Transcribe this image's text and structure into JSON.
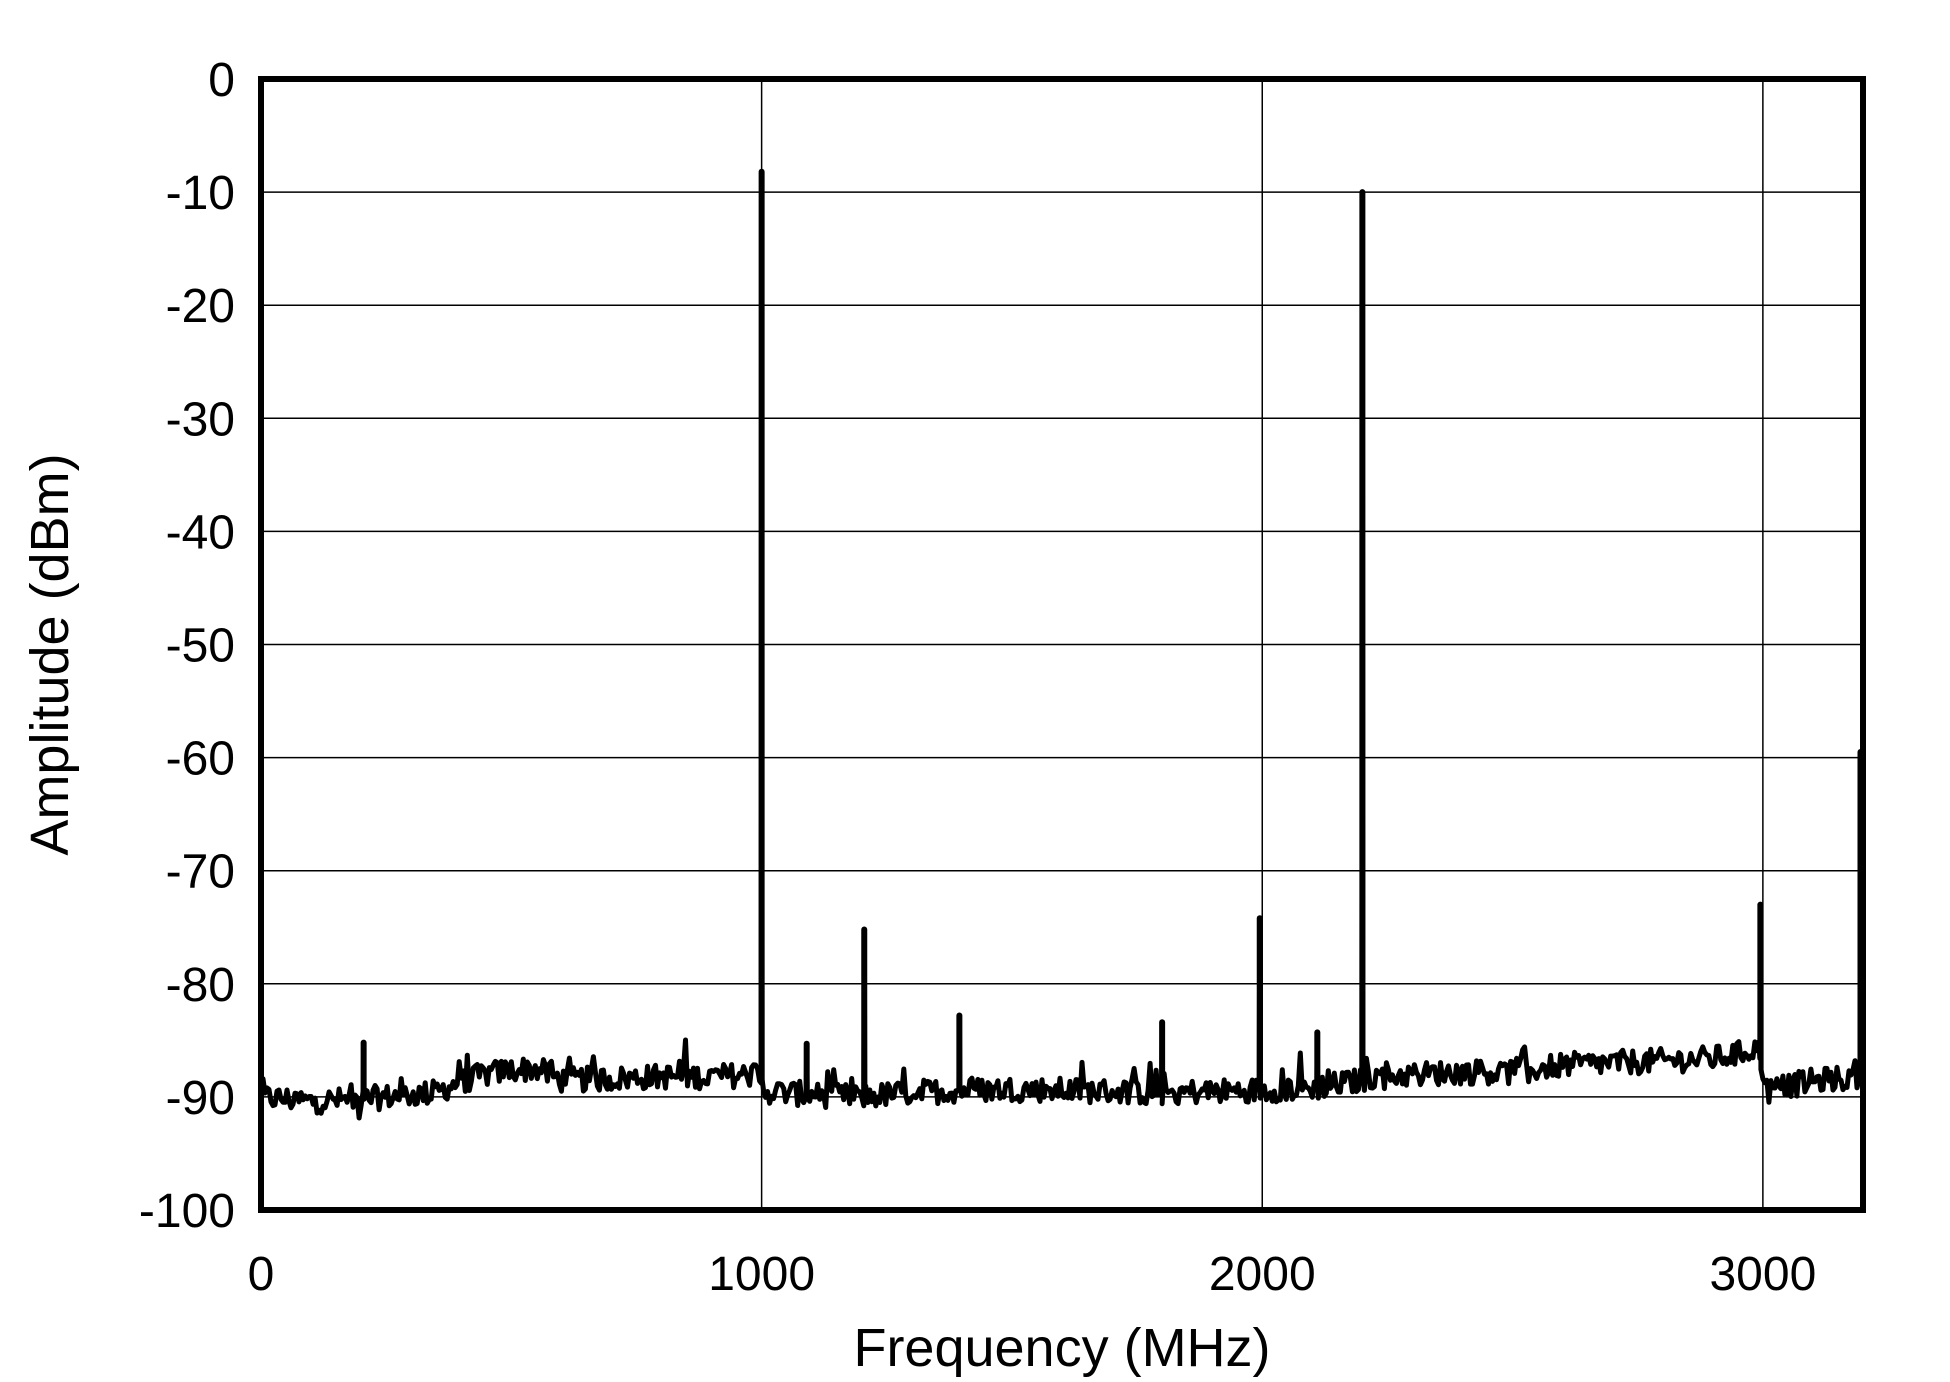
{
  "chart_data": {
    "type": "line",
    "title": "",
    "xlabel": "Frequency (MHz)",
    "ylabel": "Amplitude (dBm)",
    "xlim": [
      0,
      3200
    ],
    "ylim": [
      -100,
      0
    ],
    "xticks": [
      0,
      1000,
      2000,
      3000
    ],
    "xtick_labels": [
      "0",
      "1000",
      "2000",
      "3000"
    ],
    "yticks": [
      0,
      -10,
      -20,
      -30,
      -40,
      -50,
      -60,
      -70,
      -80,
      -90,
      -100
    ],
    "ytick_labels": [
      "0",
      "-10",
      "-20",
      "-30",
      "-40",
      "-50",
      "-60",
      "-70",
      "-80",
      "-90",
      "-100"
    ],
    "grid": true,
    "legend": "none",
    "colors": {
      "trace": "#000000",
      "grid": "#000000",
      "background": "#ffffff"
    },
    "noise_floor": {
      "x": [
        0,
        100,
        200,
        300,
        350,
        400,
        450,
        500,
        550,
        600,
        700,
        800,
        900,
        990,
        1010,
        1100,
        1200,
        1300,
        1400,
        1500,
        1600,
        1700,
        1800,
        1900,
        2000,
        2100,
        2190,
        2210,
        2300,
        2400,
        2500,
        2600,
        2700,
        2800,
        2900,
        2950,
        2990,
        3010,
        3050,
        3100,
        3150,
        3200
      ],
      "y": [
        -90,
        -90.4,
        -90.2,
        -89.8,
        -89.6,
        -88.6,
        -88,
        -87.6,
        -87.5,
        -88.5,
        -88.4,
        -88.2,
        -88.2,
        -88,
        -89.5,
        -89.8,
        -90,
        -89.6,
        -89.4,
        -89.3,
        -89.4,
        -89.5,
        -89.6,
        -89.5,
        -89.4,
        -89.2,
        -88.6,
        -88.3,
        -88,
        -87.8,
        -87.8,
        -87.2,
        -87,
        -86.8,
        -86.6,
        -86.2,
        -85.6,
        -89.5,
        -89,
        -88.6,
        -88.4,
        -88.4
      ]
    },
    "series": [
      {
        "peaks": [
          {
            "x": 205,
            "y": -85.2
          },
          {
            "x": 1000,
            "y": -8.2
          },
          {
            "x": 1090,
            "y": -85.3
          },
          {
            "x": 1205,
            "y": -75.2
          },
          {
            "x": 1395,
            "y": -82.8
          },
          {
            "x": 1800,
            "y": -83.4
          },
          {
            "x": 1995,
            "y": -74.2
          },
          {
            "x": 2110,
            "y": -84.3
          },
          {
            "x": 2200,
            "y": -10
          },
          {
            "x": 2995,
            "y": -73
          },
          {
            "x": 3195,
            "y": -59.5
          }
        ]
      }
    ]
  }
}
